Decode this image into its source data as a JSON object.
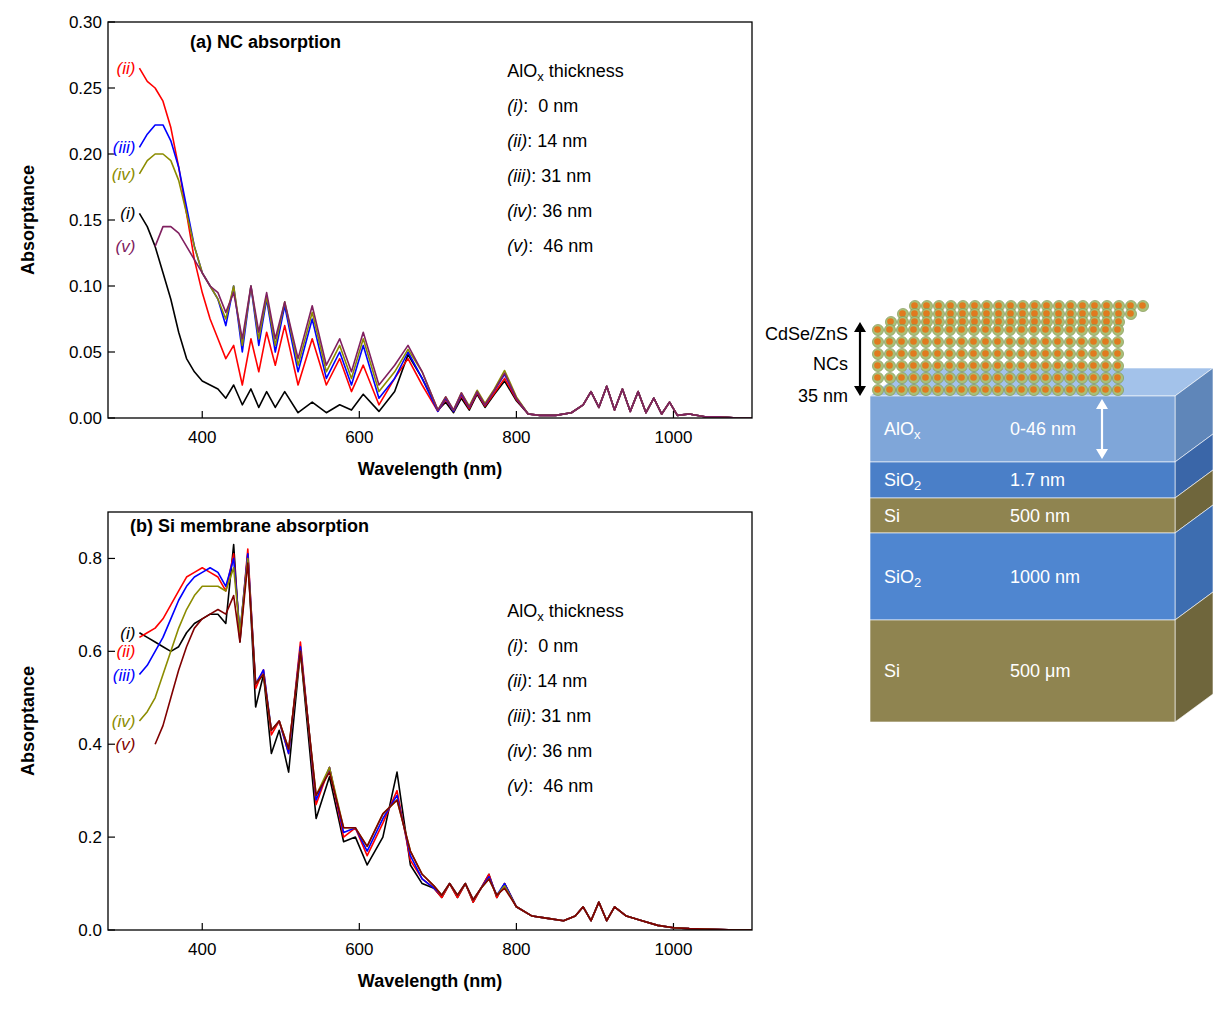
{
  "chart_data": [
    {
      "type": "line",
      "title": "(a) NC absorption",
      "x_label": "Wavelength (nm)",
      "y_label": "Absorptance",
      "legend": "top-right",
      "legend_title": [
        "AlO",
        "x",
        " thickness"
      ],
      "xlim": [
        280,
        1100
      ],
      "xticks": [
        400,
        600,
        800,
        1000
      ],
      "ylim": [
        0,
        0.3
      ],
      "yticks": [
        {
          "value": 0,
          "label": "0.00"
        },
        0.05,
        {
          "value": 0.1,
          "label": "0.10"
        },
        0.15,
        {
          "value": 0.2,
          "label": "0.20"
        },
        0.25,
        {
          "value": 0.3,
          "label": "0.30"
        }
      ],
      "x": [
        320,
        330,
        340,
        350,
        360,
        370,
        380,
        390,
        400,
        410,
        420,
        430,
        440,
        451,
        462,
        472,
        482,
        493,
        505,
        522,
        540,
        558,
        575,
        590,
        605,
        625,
        645,
        662,
        680,
        700,
        710,
        720,
        730,
        740,
        750,
        760,
        772,
        785,
        800,
        815,
        830,
        850,
        870,
        885,
        895,
        905,
        915,
        925,
        935,
        945,
        955,
        965,
        975,
        985,
        995,
        1005,
        1020,
        1040,
        1060,
        1080,
        1100
      ],
      "series": [
        {
          "name": "(i):  0 nm",
          "label": "(i)",
          "color": "#000000",
          "values": [
            0.155,
            0.145,
            0.13,
            0.11,
            0.09,
            0.065,
            0.045,
            0.035,
            0.028,
            0.025,
            0.022,
            0.015,
            0.025,
            0.01,
            0.022,
            0.008,
            0.02,
            0.008,
            0.02,
            0.004,
            0.012,
            0.004,
            0.01,
            0.006,
            0.018,
            0.005,
            0.02,
            0.048,
            0.03,
            0.006,
            0.012,
            0.004,
            0.015,
            0.006,
            0.018,
            0.008,
            0.018,
            0.028,
            0.013,
            0.003,
            0.002,
            0.002,
            0.004,
            0.01,
            0.02,
            0.008,
            0.024,
            0.006,
            0.022,
            0.005,
            0.02,
            0.004,
            0.015,
            0.003,
            0.012,
            0.002,
            0.003,
            0.001,
            0.001,
            0,
            0
          ]
        },
        {
          "name": "(ii): 14 nm",
          "label": "(ii)",
          "color": "#ff0000",
          "values": [
            0.265,
            0.255,
            0.25,
            0.24,
            0.22,
            0.19,
            0.155,
            0.12,
            0.095,
            0.075,
            0.06,
            0.045,
            0.055,
            0.025,
            0.06,
            0.035,
            0.065,
            0.04,
            0.07,
            0.025,
            0.06,
            0.025,
            0.045,
            0.02,
            0.04,
            0.01,
            0.03,
            0.045,
            0.025,
            0.005,
            0.014,
            0.005,
            0.017,
            0.007,
            0.019,
            0.009,
            0.019,
            0.03,
            0.014,
            0.003,
            0.002,
            0.002,
            0.004,
            0.01,
            0.02,
            0.008,
            0.024,
            0.006,
            0.022,
            0.005,
            0.02,
            0.004,
            0.015,
            0.003,
            0.012,
            0.002,
            0.003,
            0.001,
            0.001,
            0,
            0
          ]
        },
        {
          "name": "(iii): 31 nm",
          "label": "(iii)",
          "color": "#0000ff",
          "values": [
            0.205,
            0.215,
            0.222,
            0.222,
            0.21,
            0.19,
            0.16,
            0.13,
            0.11,
            0.1,
            0.09,
            0.07,
            0.1,
            0.05,
            0.1,
            0.055,
            0.09,
            0.05,
            0.085,
            0.035,
            0.075,
            0.03,
            0.05,
            0.025,
            0.055,
            0.015,
            0.03,
            0.05,
            0.03,
            0.005,
            0.015,
            0.005,
            0.018,
            0.008,
            0.02,
            0.01,
            0.021,
            0.033,
            0.015,
            0.003,
            0.002,
            0.002,
            0.004,
            0.01,
            0.02,
            0.008,
            0.024,
            0.006,
            0.022,
            0.005,
            0.02,
            0.004,
            0.015,
            0.003,
            0.012,
            0.002,
            0.003,
            0.001,
            0.001,
            0,
            0
          ]
        },
        {
          "name": "(iv): 36 nm",
          "label": "(iv)",
          "color": "#8c8c00",
          "values": [
            0.185,
            0.195,
            0.2,
            0.2,
            0.195,
            0.18,
            0.155,
            0.13,
            0.11,
            0.1,
            0.09,
            0.075,
            0.1,
            0.055,
            0.1,
            0.06,
            0.092,
            0.055,
            0.088,
            0.04,
            0.08,
            0.035,
            0.055,
            0.03,
            0.06,
            0.02,
            0.035,
            0.052,
            0.035,
            0.006,
            0.016,
            0.006,
            0.019,
            0.009,
            0.021,
            0.011,
            0.022,
            0.036,
            0.016,
            0.003,
            0.002,
            0.002,
            0.004,
            0.01,
            0.02,
            0.008,
            0.024,
            0.006,
            0.022,
            0.005,
            0.02,
            0.004,
            0.015,
            0.003,
            0.012,
            0.002,
            0.003,
            0.001,
            0.001,
            0,
            0
          ]
        },
        {
          "name": "(v):  46 nm",
          "label": "(v)",
          "color": "#802060",
          "values": [
            null,
            null,
            0.13,
            0.145,
            0.145,
            0.14,
            0.13,
            0.12,
            0.11,
            0.1,
            0.095,
            0.08,
            0.095,
            0.06,
            0.1,
            0.065,
            0.095,
            0.06,
            0.088,
            0.045,
            0.085,
            0.04,
            0.06,
            0.035,
            0.065,
            0.025,
            0.04,
            0.055,
            0.035,
            0.006,
            0.016,
            0.006,
            0.019,
            0.008,
            0.02,
            0.01,
            0.021,
            0.034,
            0.015,
            0.003,
            0.002,
            0.002,
            0.004,
            0.01,
            0.02,
            0.008,
            0.024,
            0.006,
            0.022,
            0.005,
            0.02,
            0.004,
            0.015,
            0.003,
            0.012,
            0.002,
            0.003,
            0.001,
            0.001,
            0,
            0
          ]
        }
      ]
    },
    {
      "type": "line",
      "title": "(b) Si membrane absorption",
      "x_label": "Wavelength (nm)",
      "y_label": "Absorptance",
      "legend": "top-right",
      "legend_title": [
        "AlO",
        "x",
        " thickness"
      ],
      "xlim": [
        280,
        1100
      ],
      "xticks": [
        400,
        600,
        800,
        1000
      ],
      "ylim": [
        0,
        0.9
      ],
      "yticks": [
        {
          "value": 0,
          "label": "0.0"
        },
        0.2,
        0.4,
        0.6,
        0.8
      ],
      "x": [
        320,
        330,
        340,
        350,
        360,
        370,
        380,
        390,
        400,
        410,
        420,
        430,
        440,
        448,
        458,
        468,
        478,
        488,
        498,
        510,
        525,
        545,
        562,
        580,
        595,
        610,
        630,
        648,
        665,
        680,
        695,
        705,
        715,
        725,
        735,
        745,
        755,
        765,
        775,
        785,
        800,
        820,
        840,
        860,
        875,
        885,
        895,
        905,
        915,
        925,
        940,
        960,
        980,
        1000,
        1020,
        1040,
        1060,
        1080,
        1100
      ],
      "series": [
        {
          "name": "(i):  0 nm",
          "label": "(i)",
          "color": "#000000",
          "values": [
            0.64,
            0.63,
            0.62,
            0.61,
            0.6,
            0.61,
            0.64,
            0.66,
            0.67,
            0.68,
            0.68,
            0.66,
            0.83,
            0.62,
            0.81,
            0.48,
            0.55,
            0.38,
            0.43,
            0.34,
            0.6,
            0.24,
            0.33,
            0.19,
            0.2,
            0.14,
            0.2,
            0.34,
            0.14,
            0.1,
            0.09,
            0.07,
            0.1,
            0.07,
            0.1,
            0.06,
            0.09,
            0.12,
            0.07,
            0.1,
            0.05,
            0.03,
            0.025,
            0.02,
            0.03,
            0.05,
            0.02,
            0.06,
            0.02,
            0.05,
            0.03,
            0.02,
            0.01,
            0.005,
            0.003,
            0.002,
            0.001,
            0,
            0
          ]
        },
        {
          "name": "(ii): 14 nm",
          "label": "(ii)",
          "color": "#ff0000",
          "values": [
            0.63,
            0.64,
            0.65,
            0.67,
            0.7,
            0.73,
            0.76,
            0.77,
            0.78,
            0.77,
            0.76,
            0.73,
            0.81,
            0.63,
            0.82,
            0.52,
            0.56,
            0.42,
            0.45,
            0.38,
            0.62,
            0.27,
            0.35,
            0.2,
            0.22,
            0.16,
            0.23,
            0.3,
            0.15,
            0.11,
            0.09,
            0.07,
            0.1,
            0.07,
            0.1,
            0.06,
            0.09,
            0.12,
            0.07,
            0.1,
            0.05,
            0.03,
            0.025,
            0.02,
            0.03,
            0.05,
            0.02,
            0.06,
            0.02,
            0.05,
            0.03,
            0.02,
            0.01,
            0.005,
            0.003,
            0.002,
            0.001,
            0,
            0
          ]
        },
        {
          "name": "(iii): 31 nm",
          "label": "(iii)",
          "color": "#0000ff",
          "values": [
            0.55,
            0.57,
            0.6,
            0.63,
            0.67,
            0.71,
            0.74,
            0.76,
            0.77,
            0.78,
            0.77,
            0.74,
            0.8,
            0.64,
            0.81,
            0.53,
            0.56,
            0.43,
            0.45,
            0.38,
            0.61,
            0.28,
            0.35,
            0.21,
            0.22,
            0.17,
            0.24,
            0.29,
            0.16,
            0.11,
            0.09,
            0.075,
            0.1,
            0.075,
            0.1,
            0.065,
            0.09,
            0.115,
            0.075,
            0.1,
            0.05,
            0.03,
            0.025,
            0.02,
            0.03,
            0.05,
            0.02,
            0.06,
            0.02,
            0.05,
            0.03,
            0.02,
            0.01,
            0.005,
            0.003,
            0.002,
            0.001,
            0,
            0
          ]
        },
        {
          "name": "(iv): 36 nm",
          "label": "(iv)",
          "color": "#8c8c00",
          "values": [
            0.45,
            0.47,
            0.5,
            0.55,
            0.6,
            0.65,
            0.69,
            0.72,
            0.74,
            0.74,
            0.74,
            0.73,
            0.78,
            0.64,
            0.8,
            0.53,
            0.55,
            0.43,
            0.45,
            0.39,
            0.6,
            0.29,
            0.35,
            0.22,
            0.22,
            0.18,
            0.25,
            0.28,
            0.17,
            0.12,
            0.095,
            0.075,
            0.1,
            0.075,
            0.1,
            0.065,
            0.09,
            0.11,
            0.075,
            0.095,
            0.05,
            0.03,
            0.025,
            0.02,
            0.03,
            0.05,
            0.02,
            0.06,
            0.02,
            0.05,
            0.03,
            0.02,
            0.01,
            0.005,
            0.003,
            0.002,
            0.001,
            0,
            0
          ]
        },
        {
          "name": "(v):  46 nm",
          "label": "(v)",
          "color": "#800000",
          "values": [
            null,
            null,
            0.4,
            0.44,
            0.5,
            0.56,
            0.61,
            0.65,
            0.67,
            0.68,
            0.69,
            0.68,
            0.72,
            0.62,
            0.79,
            0.53,
            0.55,
            0.43,
            0.45,
            0.39,
            0.6,
            0.29,
            0.34,
            0.22,
            0.22,
            0.18,
            0.25,
            0.28,
            0.17,
            0.12,
            0.095,
            0.075,
            0.1,
            0.075,
            0.1,
            0.065,
            0.09,
            0.11,
            0.075,
            0.09,
            0.05,
            0.03,
            0.025,
            0.02,
            0.03,
            0.05,
            0.02,
            0.06,
            0.02,
            0.05,
            0.03,
            0.02,
            0.01,
            0.005,
            0.003,
            0.002,
            0.001,
            0,
            0
          ]
        }
      ]
    }
  ],
  "diagram": {
    "nc_layer": {
      "label": [
        "CdSe/ZnS",
        "NCs"
      ],
      "thickness": "35 nm"
    },
    "layers": [
      {
        "name": [
          "AlO",
          "x"
        ],
        "thickness": "0-46 nm"
      },
      {
        "name": [
          "SiO",
          "2"
        ],
        "thickness": "1.7 nm"
      },
      {
        "name": [
          "Si"
        ],
        "thickness": "500 nm"
      },
      {
        "name": [
          "SiO",
          "2"
        ],
        "thickness": "1000 nm"
      },
      {
        "name": [
          "Si"
        ],
        "thickness": "500 μm"
      }
    ]
  }
}
